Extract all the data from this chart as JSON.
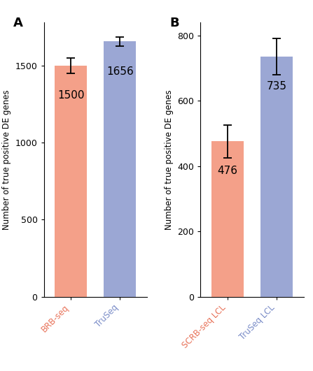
{
  "panel_A": {
    "categories": [
      "BRB-seq",
      "TruSeq"
    ],
    "values": [
      1500,
      1656
    ],
    "errors": [
      50,
      30
    ],
    "bar_colors": [
      "#F4A089",
      "#9BA7D4"
    ],
    "label_colors": [
      "#E8735A",
      "#7B8DC8"
    ],
    "value_labels": [
      "1500",
      "1656"
    ],
    "ylabel": "Number of true positive DE genes",
    "ylim": [
      0,
      1780
    ],
    "yticks": [
      0,
      500,
      1000,
      1500
    ],
    "panel_label": "A"
  },
  "panel_B": {
    "categories": [
      "SCRB-seq LCL",
      "TruSeq LCL"
    ],
    "values": [
      476,
      735
    ],
    "errors": [
      50,
      55
    ],
    "bar_colors": [
      "#F4A089",
      "#9BA7D4"
    ],
    "label_colors": [
      "#E8735A",
      "#7B8DC8"
    ],
    "value_labels": [
      "476",
      "735"
    ],
    "ylabel": "Number of true positive DE genes",
    "ylim": [
      0,
      840
    ],
    "yticks": [
      0,
      200,
      400,
      600,
      800
    ],
    "panel_label": "B"
  },
  "background_color": "#FFFFFF",
  "bar_width": 0.65,
  "value_fontsize": 11,
  "label_fontsize": 8.5,
  "ylabel_fontsize": 8.5,
  "panel_label_fontsize": 13
}
